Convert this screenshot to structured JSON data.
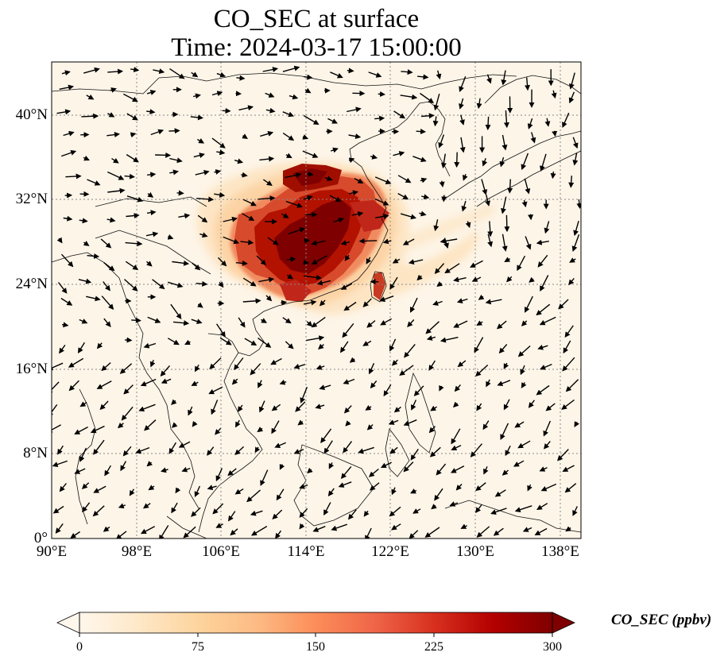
{
  "figure": {
    "title_line1": "CO_SEC at surface",
    "title_line2": "Time: 2024-03-17 15:00:00"
  },
  "map": {
    "lon_range": [
      90,
      140
    ],
    "lat_range": [
      0,
      45
    ],
    "lat_ticks": [
      {
        "value": 0,
        "label": "0°"
      },
      {
        "value": 8,
        "label": "8°N"
      },
      {
        "value": 16,
        "label": "16°N"
      },
      {
        "value": 24,
        "label": "24°N"
      },
      {
        "value": 32,
        "label": "32°N"
      },
      {
        "value": 40,
        "label": "40°N"
      }
    ],
    "lon_ticks": [
      {
        "value": 90,
        "label": "90°E"
      },
      {
        "value": 98,
        "label": "98°E"
      },
      {
        "value": 106,
        "label": "106°E"
      },
      {
        "value": 114,
        "label": "114°E"
      },
      {
        "value": 122,
        "label": "122°E"
      },
      {
        "value": 130,
        "label": "130°E"
      },
      {
        "value": 138,
        "label": "138°E"
      }
    ],
    "gridlines": true,
    "wind_vectors": true
  },
  "colorbar": {
    "label": "CO_SEC (ppbv)",
    "min": 0,
    "max": 300,
    "extend": "both",
    "ticks": [
      "0",
      "75",
      "150",
      "225",
      "300"
    ],
    "colormap": [
      "#fff7ec",
      "#fee8c8",
      "#fdd49e",
      "#fdbb84",
      "#fc8d59",
      "#ef6548",
      "#d7301f",
      "#b30000",
      "#7f0000"
    ]
  }
}
